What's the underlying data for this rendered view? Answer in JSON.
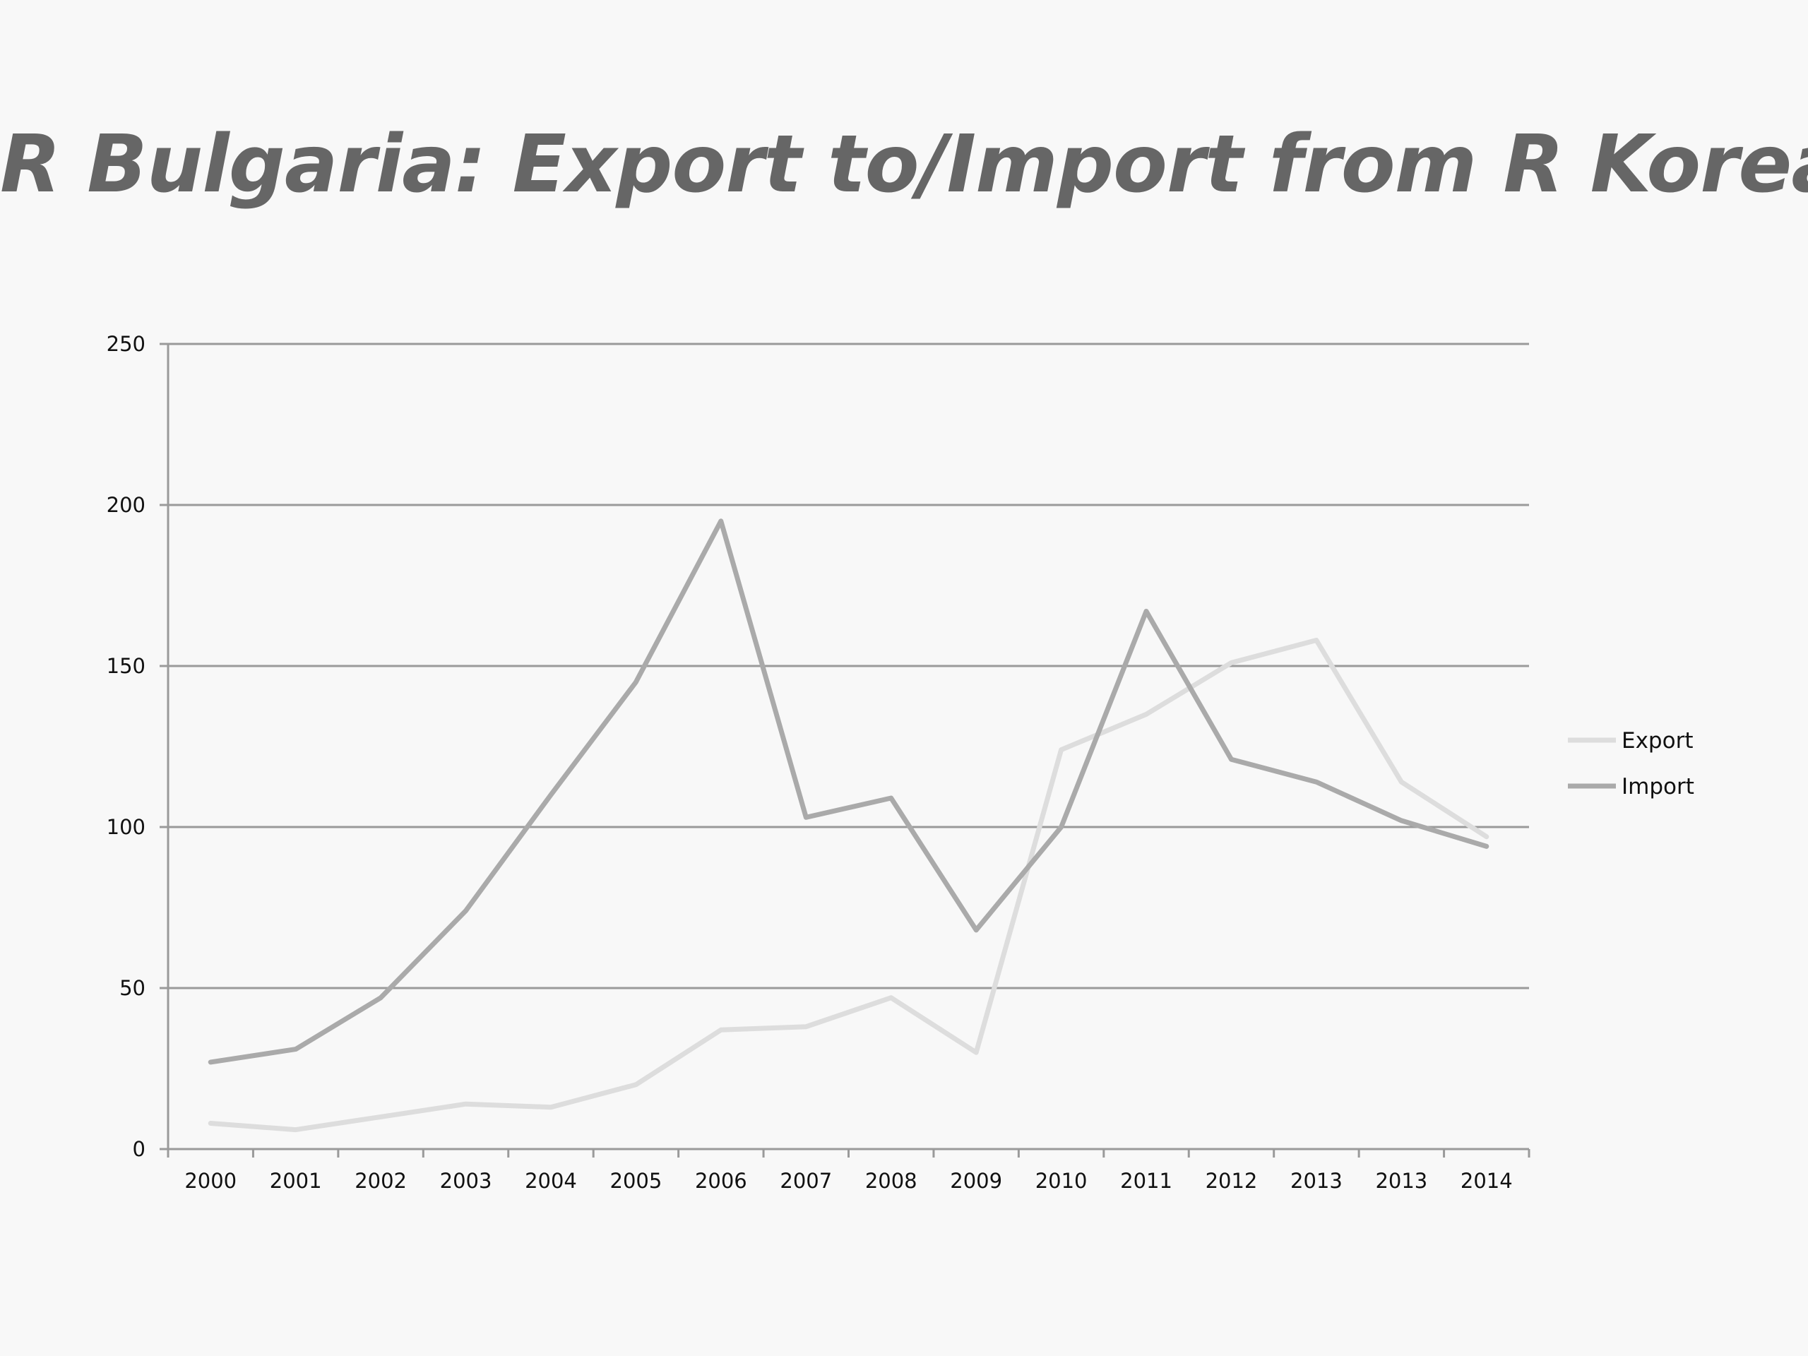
{
  "chart_data": {
    "type": "line",
    "title": "R Bulgaria: Export to/Import from R Korea",
    "xlabel": "",
    "ylabel": "",
    "categories": [
      "2000",
      "2001",
      "2002",
      "2003",
      "2004",
      "2005",
      "2006",
      "2007",
      "2008",
      "2009",
      "2010",
      "2011",
      "2012",
      "2013",
      "2013",
      "2014"
    ],
    "series": [
      {
        "name": "Export",
        "color": "#dddddd",
        "values": [
          8,
          6,
          10,
          14,
          13,
          20,
          37,
          38,
          47,
          30,
          124,
          135,
          151,
          158,
          114,
          97
        ]
      },
      {
        "name": "Import",
        "color": "#aaaaaa",
        "values": [
          27,
          31,
          47,
          74,
          110,
          145,
          195,
          103,
          109,
          68,
          100,
          167,
          121,
          114,
          102,
          94
        ]
      }
    ],
    "ylim": [
      0,
      250
    ],
    "yticks": [
      "0",
      "50",
      "100",
      "150",
      "200",
      "250"
    ],
    "grid": true,
    "legend_position": "right"
  }
}
